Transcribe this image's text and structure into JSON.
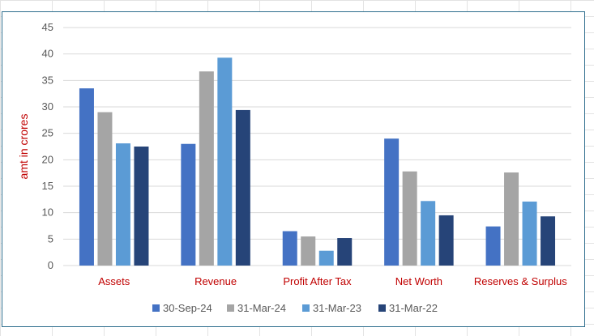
{
  "chart_data": {
    "type": "bar",
    "title": "",
    "xlabel": "",
    "ylabel": "amt in crores",
    "ylim": [
      0,
      45
    ],
    "yticks": [
      0,
      5,
      10,
      15,
      20,
      25,
      30,
      35,
      40,
      45
    ],
    "grid": true,
    "legend_position": "bottom",
    "categories": [
      "Assets",
      "Revenue",
      "Profit After Tax",
      "Net Worth",
      "Reserves & Surplus"
    ],
    "series": [
      {
        "name": "30-Sep-24",
        "color": "#4472c4",
        "values": [
          33.5,
          23.0,
          6.5,
          24.0,
          7.4
        ]
      },
      {
        "name": "31-Mar-24",
        "color": "#a5a5a5",
        "values": [
          29.0,
          36.7,
          5.5,
          17.8,
          17.6
        ]
      },
      {
        "name": "31-Mar-23",
        "color": "#5b9bd5",
        "values": [
          23.1,
          39.3,
          2.8,
          12.2,
          12.1
        ]
      },
      {
        "name": "31-Mar-22",
        "color": "#264478",
        "values": [
          22.5,
          29.4,
          5.2,
          9.5,
          9.3
        ]
      }
    ],
    "colors": {
      "category_label": "#c00000",
      "ylabel": "#c00000",
      "tick_label": "#595959",
      "gridline": "#d9d9d9"
    }
  }
}
